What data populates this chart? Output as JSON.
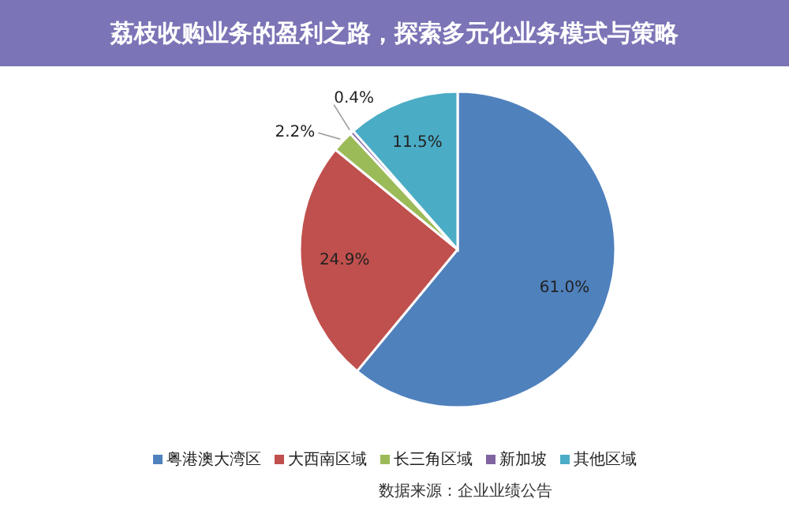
{
  "chart_data": {
    "type": "pie",
    "title": "荔枝收购业务的盈利之路，探索多元化业务模式与策略",
    "categories": [
      "粤港澳大湾区",
      "大西南区域",
      "长三角区域",
      "新加坡",
      "其他区域"
    ],
    "values": [
      61.0,
      24.9,
      2.2,
      0.4,
      11.5
    ],
    "value_labels": [
      "61.0%",
      "24.9%",
      "2.2%",
      "0.4%",
      "11.5%"
    ],
    "colors": [
      "#4f81bd",
      "#c0504d",
      "#9bbb59",
      "#8064a2",
      "#4bacc6"
    ],
    "legend": "bottom",
    "annotations": [
      "数据来源：企业业绩公告"
    ]
  }
}
